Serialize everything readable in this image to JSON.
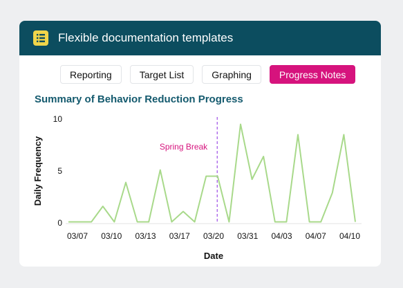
{
  "header": {
    "title": "Flexible documentation templates",
    "icon": "list-document-icon"
  },
  "tabs": [
    {
      "label": "Reporting",
      "active": false
    },
    {
      "label": "Target List",
      "active": false
    },
    {
      "label": "Graphing",
      "active": false
    },
    {
      "label": "Progress Notes",
      "active": true
    }
  ],
  "chart_title": "Summary of Behavior Reduction Progress",
  "colors": {
    "header": "#0c4d5f",
    "accent": "#d6137d",
    "line": "#a8d98a",
    "icon": "#f0d54a"
  },
  "chart_data": {
    "type": "line",
    "xlabel": "Date",
    "ylabel": "Daily Frequency",
    "ylim": [
      0,
      10
    ],
    "yticks": [
      0,
      5,
      10
    ],
    "xtick_labels": [
      "03/07",
      "03/10",
      "03/13",
      "03/17",
      "03/20",
      "03/31",
      "04/03",
      "04/07",
      "04/10"
    ],
    "annotation": {
      "label": "Spring Break",
      "x_index": 13
    },
    "series": [
      {
        "values": [
          0.1,
          0.1,
          0.1,
          1.6,
          0.1,
          3.9,
          0.1,
          0.1,
          5.1,
          0.1,
          1.1,
          0.1,
          4.5,
          4.5,
          0.1,
          9.5,
          4.2,
          6.4,
          0.1,
          0.1,
          8.5,
          0.1,
          0.1,
          2.9,
          8.5,
          0.1
        ]
      }
    ]
  }
}
